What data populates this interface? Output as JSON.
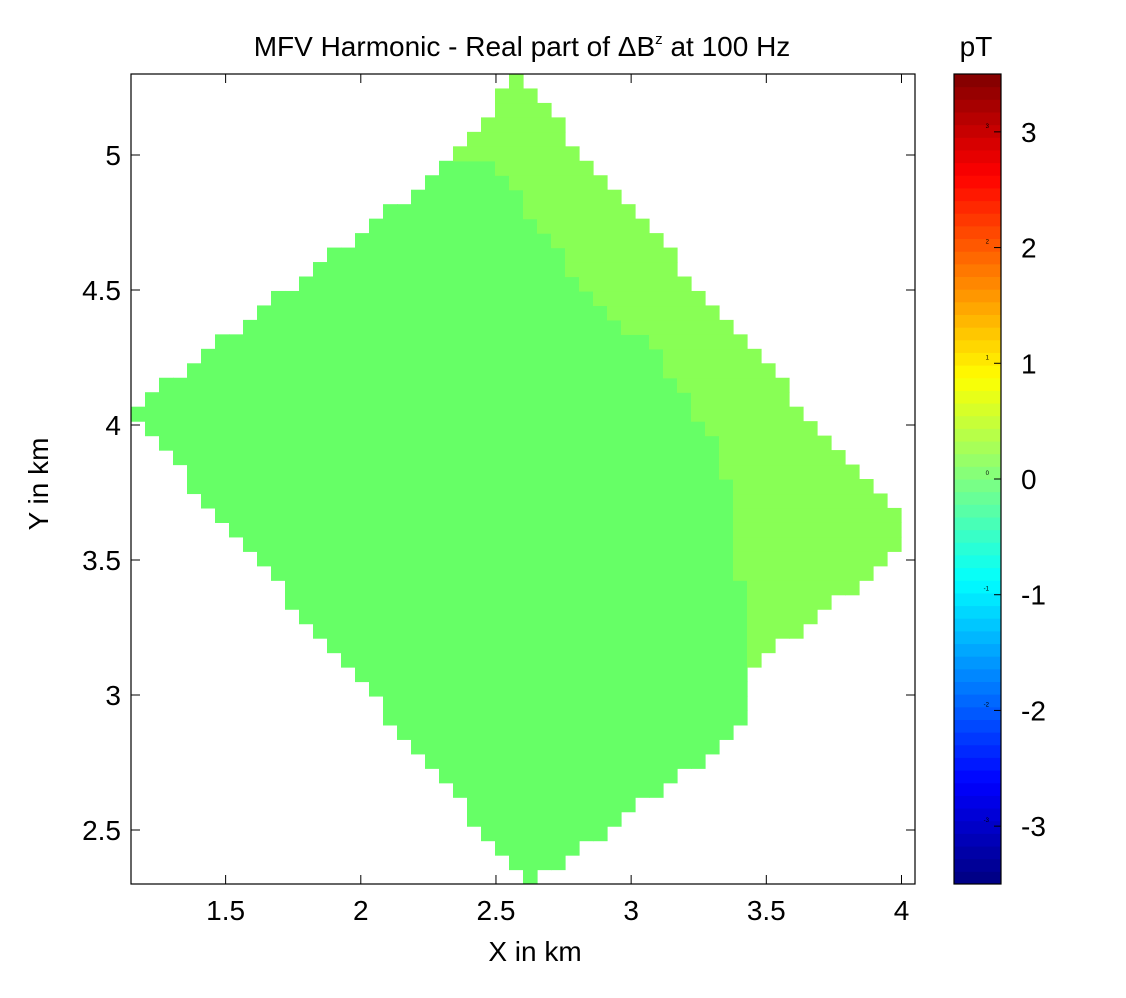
{
  "chart_data": {
    "type": "heatmap",
    "title_main": "MFV Harmonic - Real part of ΔB",
    "title_sup": "z",
    "title_tail": " at 100 Hz",
    "xlabel": "X in km",
    "ylabel": "Y in km",
    "xlim": [
      1.15,
      4.05
    ],
    "ylim": [
      2.3,
      5.3
    ],
    "xticks": [
      1.5,
      2,
      2.5,
      3,
      3.5,
      4
    ],
    "xtick_labels": [
      "1.5",
      "2",
      "2.5",
      "3",
      "3.5",
      "4"
    ],
    "yticks": [
      2.5,
      3,
      3.5,
      4,
      4.5,
      5
    ],
    "ytick_labels": [
      "2.5",
      "3",
      "3.5",
      "4",
      "4.5",
      "5"
    ],
    "colorbar": {
      "label": "pT",
      "range": [
        -3.5,
        3.5
      ],
      "ticks": [
        -3,
        -2,
        -1,
        0,
        1,
        2,
        3
      ],
      "tick_labels": [
        "-3",
        "-2",
        "-1",
        "0",
        "1",
        "2",
        "3"
      ],
      "colormap": "jet"
    },
    "grid": false,
    "domain": {
      "shape": "rotated-square",
      "vertices": [
        [
          2.57,
          5.3
        ],
        [
          4.05,
          3.58
        ],
        [
          2.62,
          2.3
        ],
        [
          1.15,
          4.05
        ]
      ]
    },
    "regions": [
      {
        "value": 0.0,
        "color": "#66ff66",
        "polygon": [
          [
            2.62,
            2.3
          ],
          [
            1.15,
            4.05
          ],
          [
            2.36,
            5.0
          ],
          [
            2.52,
            4.95
          ],
          [
            2.75,
            4.6
          ],
          [
            3.13,
            4.22
          ],
          [
            3.33,
            3.9
          ],
          [
            3.38,
            3.6
          ],
          [
            3.45,
            3.1
          ],
          [
            3.4,
            2.85
          ]
        ]
      },
      {
        "value": 0.12,
        "color": "#88ff55",
        "polygon": [
          [
            2.57,
            5.3
          ],
          [
            4.05,
            3.58
          ],
          [
            3.45,
            3.1
          ],
          [
            3.38,
            3.6
          ],
          [
            3.33,
            3.9
          ],
          [
            3.13,
            4.22
          ],
          [
            2.75,
            4.6
          ],
          [
            2.52,
            4.95
          ],
          [
            2.36,
            5.0
          ]
        ]
      }
    ]
  }
}
